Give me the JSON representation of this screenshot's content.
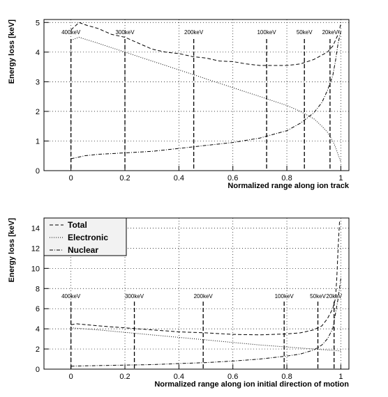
{
  "chart_data": [
    {
      "type": "line",
      "xlabel": "Normalized range along ion track",
      "ylabel": "Energy loss [keV]",
      "xlim": [
        -0.1,
        1.03
      ],
      "ylim": [
        0,
        5.1
      ],
      "xticks": [
        0,
        0.2,
        0.4,
        0.6,
        0.8,
        1
      ],
      "xtick_labels": [
        "0",
        "0.2",
        "0.4",
        "0.6",
        "0.8",
        "1"
      ],
      "yticks": [
        0,
        1,
        2,
        3,
        4,
        5
      ],
      "ytick_labels": [
        "0",
        "1",
        "2",
        "3",
        "4",
        "5"
      ],
      "grid": true,
      "markers": [
        {
          "x": 0.0,
          "label": "400keV"
        },
        {
          "x": 0.2,
          "label": "300keV"
        },
        {
          "x": 0.455,
          "label": "200keV"
        },
        {
          "x": 0.725,
          "label": "100keV"
        },
        {
          "x": 0.865,
          "label": "50keV"
        },
        {
          "x": 0.96,
          "label": "20keV"
        }
      ],
      "series": [
        {
          "id": "total",
          "style": "dashed",
          "x": [
            0,
            0.03,
            0.06,
            0.1,
            0.15,
            0.2,
            0.25,
            0.3,
            0.35,
            0.4,
            0.45,
            0.5,
            0.55,
            0.6,
            0.65,
            0.7,
            0.75,
            0.8,
            0.85,
            0.9,
            0.93,
            0.95,
            0.97,
            0.98,
            0.99,
            1.0
          ],
          "y": [
            4.75,
            5.0,
            4.9,
            4.8,
            4.6,
            4.5,
            4.3,
            4.1,
            4.0,
            3.95,
            3.85,
            3.8,
            3.7,
            3.68,
            3.6,
            3.55,
            3.55,
            3.55,
            3.6,
            3.75,
            3.9,
            4.0,
            4.2,
            4.4,
            4.6,
            4.95
          ]
        },
        {
          "id": "electronic",
          "style": "dotted",
          "x": [
            0,
            0.03,
            0.1,
            0.2,
            0.3,
            0.4,
            0.5,
            0.6,
            0.7,
            0.8,
            0.85,
            0.9,
            0.93,
            0.95,
            0.97,
            0.98,
            0.99,
            1.0
          ],
          "y": [
            4.4,
            4.5,
            4.3,
            4.0,
            3.7,
            3.4,
            3.1,
            2.8,
            2.5,
            2.2,
            2.0,
            1.75,
            1.5,
            1.3,
            1.0,
            0.8,
            0.55,
            0.3
          ]
        },
        {
          "id": "nuclear",
          "style": "dashdot",
          "x": [
            0,
            0.05,
            0.1,
            0.2,
            0.3,
            0.4,
            0.5,
            0.6,
            0.7,
            0.8,
            0.85,
            0.9,
            0.93,
            0.95,
            0.97,
            0.98,
            0.99,
            1.0
          ],
          "y": [
            0.4,
            0.5,
            0.55,
            0.6,
            0.65,
            0.75,
            0.85,
            0.95,
            1.1,
            1.35,
            1.6,
            1.95,
            2.3,
            2.7,
            3.2,
            3.7,
            4.3,
            4.7
          ]
        }
      ]
    },
    {
      "type": "line",
      "xlabel": "Normalized range along ion initial direction of motion",
      "ylabel": "Energy loss [keV]",
      "xlim": [
        -0.1,
        1.03
      ],
      "ylim": [
        0,
        15
      ],
      "xticks": [
        0,
        0.2,
        0.4,
        0.6,
        0.8,
        1
      ],
      "xtick_labels": [
        "0",
        "0.2",
        "0.4",
        "0.6",
        "0.8",
        "1"
      ],
      "yticks": [
        0,
        2,
        4,
        6,
        8,
        10,
        12,
        14
      ],
      "ytick_labels": [
        "0",
        "2",
        "4",
        "6",
        "8",
        "10",
        "12",
        "14"
      ],
      "grid": true,
      "legend": {
        "position": "top-left",
        "entries": [
          {
            "label": "Total",
            "style": "dashed"
          },
          {
            "label": "Electronic",
            "style": "dotted"
          },
          {
            "label": "Nuclear",
            "style": "dashdot"
          }
        ]
      },
      "markers": [
        {
          "x": 0.0,
          "label": "400keV"
        },
        {
          "x": 0.235,
          "label": "300keV"
        },
        {
          "x": 0.49,
          "label": "200keV"
        },
        {
          "x": 0.79,
          "label": "100keV"
        },
        {
          "x": 0.915,
          "label": "50keV"
        },
        {
          "x": 0.975,
          "label": "20keV"
        }
      ],
      "series": [
        {
          "id": "total",
          "style": "dashed",
          "x": [
            0,
            0.02,
            0.1,
            0.2,
            0.3,
            0.4,
            0.5,
            0.6,
            0.7,
            0.8,
            0.85,
            0.9,
            0.93,
            0.95,
            0.97,
            0.98,
            0.985,
            0.99,
            0.995,
            1.0
          ],
          "y": [
            4.4,
            4.5,
            4.3,
            4.1,
            3.9,
            3.7,
            3.6,
            3.45,
            3.4,
            3.5,
            3.6,
            3.9,
            4.3,
            5.0,
            6.0,
            7.0,
            9.0,
            12.0,
            14.6,
            14.8
          ]
        },
        {
          "id": "electronic",
          "style": "dotted",
          "x": [
            0,
            0.1,
            0.2,
            0.3,
            0.4,
            0.5,
            0.6,
            0.7,
            0.8,
            0.9,
            0.95,
            0.98,
            1.0
          ],
          "y": [
            4.1,
            3.9,
            3.65,
            3.4,
            3.15,
            2.9,
            2.65,
            2.4,
            2.2,
            2.0,
            1.9,
            1.85,
            1.8
          ]
        },
        {
          "id": "nuclear",
          "style": "dashdot",
          "x": [
            0,
            0.1,
            0.2,
            0.3,
            0.4,
            0.5,
            0.6,
            0.7,
            0.8,
            0.85,
            0.9,
            0.93,
            0.95,
            0.97,
            0.98,
            0.99,
            1.0
          ],
          "y": [
            0.3,
            0.35,
            0.4,
            0.45,
            0.55,
            0.65,
            0.8,
            1.0,
            1.3,
            1.5,
            1.9,
            2.4,
            3.0,
            4.0,
            5.5,
            7.0,
            9.0
          ]
        }
      ]
    }
  ]
}
